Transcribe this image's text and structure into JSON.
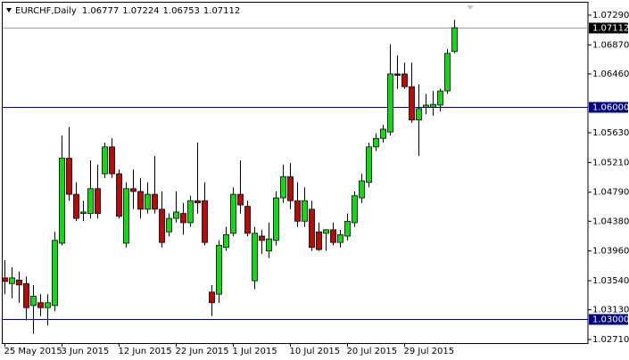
{
  "chart_data": {
    "type": "candlestick",
    "title": "EURCHF,Daily",
    "categories": [
      "25 May 2015",
      null,
      null,
      null,
      null,
      null,
      null,
      null,
      "3 Jun 2015",
      null,
      null,
      null,
      null,
      null,
      null,
      null,
      "12 Jun 2015",
      null,
      null,
      null,
      null,
      null,
      null,
      null,
      "22 Jun 2015",
      null,
      null,
      null,
      null,
      null,
      null,
      null,
      "1 Jul 2015",
      null,
      null,
      null,
      null,
      null,
      null,
      null,
      "10 Jul 2015",
      null,
      null,
      null,
      null,
      null,
      null,
      null,
      "20 Jul 2015",
      null,
      null,
      null,
      null,
      null,
      null,
      null,
      "29 Jul 2015",
      null,
      null,
      null,
      null,
      null,
      null,
      null
    ],
    "open": [
      1.0358,
      1.035,
      1.0355,
      1.035,
      1.0319,
      1.0323,
      1.0316,
      1.0319,
      1.0407,
      1.0527,
      1.0476,
      1.0449,
      1.0449,
      1.0484,
      1.0505,
      1.0543,
      1.0505,
      1.0407,
      1.0484,
      1.048,
      1.0455,
      1.0476,
      1.0455,
      1.0423,
      1.0442,
      1.0449,
      1.0436,
      1.0467,
      1.0467,
      1.0338,
      1.0335,
      1.0401,
      1.0421,
      1.0476,
      1.0459,
      1.0354,
      1.0417,
      1.0396,
      1.0411,
      1.0471,
      1.0501,
      1.0467,
      1.0438,
      1.0455,
      1.0423,
      1.0421,
      1.0426,
      1.0408,
      1.0417,
      1.0436,
      1.0471,
      1.0493,
      1.0543,
      1.0555,
      1.0564,
      1.0646,
      1.0646,
      1.0628,
      1.0581,
      1.0599,
      1.0599,
      1.0602,
      1.0622,
      1.06777
    ],
    "high": [
      1.0383,
      1.0373,
      1.0367,
      1.036,
      1.0348,
      1.0335,
      1.0335,
      1.0423,
      1.0559,
      1.0571,
      1.0493,
      1.0467,
      1.0524,
      1.0518,
      1.0549,
      1.0555,
      1.0511,
      1.0493,
      1.0511,
      1.0499,
      1.0493,
      1.053,
      1.048,
      1.0449,
      1.048,
      1.0464,
      1.0474,
      1.0549,
      1.0493,
      1.0348,
      1.0411,
      1.043,
      1.0486,
      1.0524,
      1.0467,
      1.043,
      1.0426,
      1.0436,
      1.048,
      1.0518,
      1.052,
      1.0493,
      1.0486,
      1.0467,
      1.0436,
      1.0426,
      1.0436,
      1.0426,
      1.0449,
      1.048,
      1.0505,
      1.0549,
      1.0562,
      1.0574,
      1.0688,
      1.0672,
      1.0662,
      1.0662,
      1.0631,
      1.0618,
      1.0622,
      1.0625,
      1.0681,
      1.07224
    ],
    "low": [
      1.0335,
      1.0329,
      1.0323,
      1.0298,
      1.0279,
      1.0304,
      1.0291,
      1.0311,
      1.0404,
      1.0467,
      1.0438,
      1.0438,
      1.0442,
      1.0442,
      1.0499,
      1.0499,
      1.0442,
      1.0401,
      1.0455,
      1.0442,
      1.0449,
      1.0449,
      1.0401,
      1.0417,
      1.0436,
      1.0419,
      1.043,
      1.0449,
      1.0404,
      1.0304,
      1.0323,
      1.0396,
      1.0417,
      1.0449,
      1.0417,
      1.0342,
      1.0392,
      1.0386,
      1.0404,
      1.0464,
      1.0455,
      1.043,
      1.043,
      1.0396,
      1.0396,
      1.0396,
      1.0404,
      1.0401,
      1.0411,
      1.043,
      1.0464,
      1.0486,
      1.0537,
      1.0549,
      1.0559,
      1.0625,
      1.0625,
      1.0577,
      1.053,
      1.0589,
      1.0587,
      1.0593,
      1.0618,
      1.06753
    ],
    "close": [
      1.0353,
      1.0358,
      1.0348,
      1.0316,
      1.0332,
      1.0316,
      1.0323,
      1.0411,
      1.0527,
      1.0476,
      1.0442,
      1.0451,
      1.0484,
      1.0449,
      1.0543,
      1.0505,
      1.0445,
      1.0484,
      1.048,
      1.0455,
      1.0476,
      1.0455,
      1.0408,
      1.0442,
      1.0451,
      1.0436,
      1.0467,
      1.0464,
      1.0408,
      1.0323,
      1.0404,
      1.0419,
      1.0476,
      1.0461,
      1.0421,
      1.0421,
      1.0411,
      1.0413,
      1.0471,
      1.0501,
      1.0467,
      1.0438,
      1.0467,
      1.0401,
      1.0398,
      1.0426,
      1.0408,
      1.0419,
      1.0438,
      1.0474,
      1.0495,
      1.0543,
      1.0555,
      1.0568,
      1.0646,
      1.0644,
      1.0628,
      1.0581,
      1.0597,
      1.0602,
      1.0603,
      1.0622,
      1.0675,
      1.07112
    ],
    "up_color": "#00e600",
    "down_color": "#cc0000",
    "ylim": [
      1.0266,
      1.07441
    ],
    "yticks": [
      {
        "value": 1.0729,
        "label": "1.07290"
      },
      {
        "value": 1.0687,
        "label": "1.06870"
      },
      {
        "value": 1.0646,
        "label": "1.06460"
      },
      {
        "value": 1.0563,
        "label": "1.05630"
      },
      {
        "value": 1.0521,
        "label": "1.05210"
      },
      {
        "value": 1.0479,
        "label": "1.04790"
      },
      {
        "value": 1.0438,
        "label": "1.04380"
      },
      {
        "value": 1.0396,
        "label": "1.03960"
      },
      {
        "value": 1.0354,
        "label": "1.03540"
      },
      {
        "value": 1.0313,
        "label": "1.03130"
      },
      {
        "value": 1.0271,
        "label": "1.02710"
      }
    ],
    "hlines": [
      {
        "value": 1.06,
        "label": "1.06000"
      },
      {
        "value": 1.03,
        "label": "1.03000"
      }
    ],
    "hline_color": "#000080",
    "grid": false
  }
}
